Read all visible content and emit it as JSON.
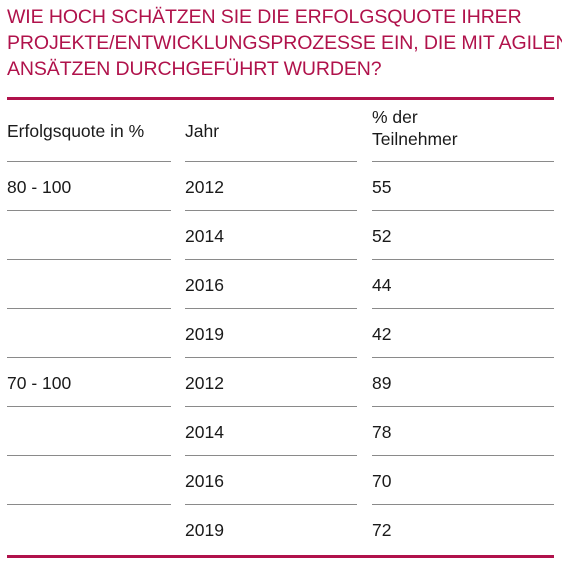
{
  "title_lines": [
    "WIE HOCH SCHÄTZEN SIE DIE ERFOLGSQUOTE IHRER",
    "PROJEKTE/ENTWICKLUNGSPROZESSE EIN, DIE MIT AGILEN",
    "ANSÄTZEN DURCHGEFÜHRT WURDEN?"
  ],
  "accent_color": "#b0124b",
  "table": {
    "headers": {
      "col1": "Erfolgsquote in %",
      "col2": "Jahr",
      "col3_line1": "% der",
      "col3_line2": "Teilnehmer"
    },
    "rows": [
      {
        "range": "80  - 100",
        "year": "2012",
        "value": "55"
      },
      {
        "range": "",
        "year": "2014",
        "value": "52"
      },
      {
        "range": "",
        "year": "2016",
        "value": "44"
      },
      {
        "range": "",
        "year": "2019",
        "value": "42"
      },
      {
        "range": "70  - 100",
        "year": "2012",
        "value": "89"
      },
      {
        "range": "",
        "year": "2014",
        "value": "78"
      },
      {
        "range": "",
        "year": "2016",
        "value": "70"
      },
      {
        "range": "",
        "year": "2019",
        "value": "72"
      }
    ]
  }
}
